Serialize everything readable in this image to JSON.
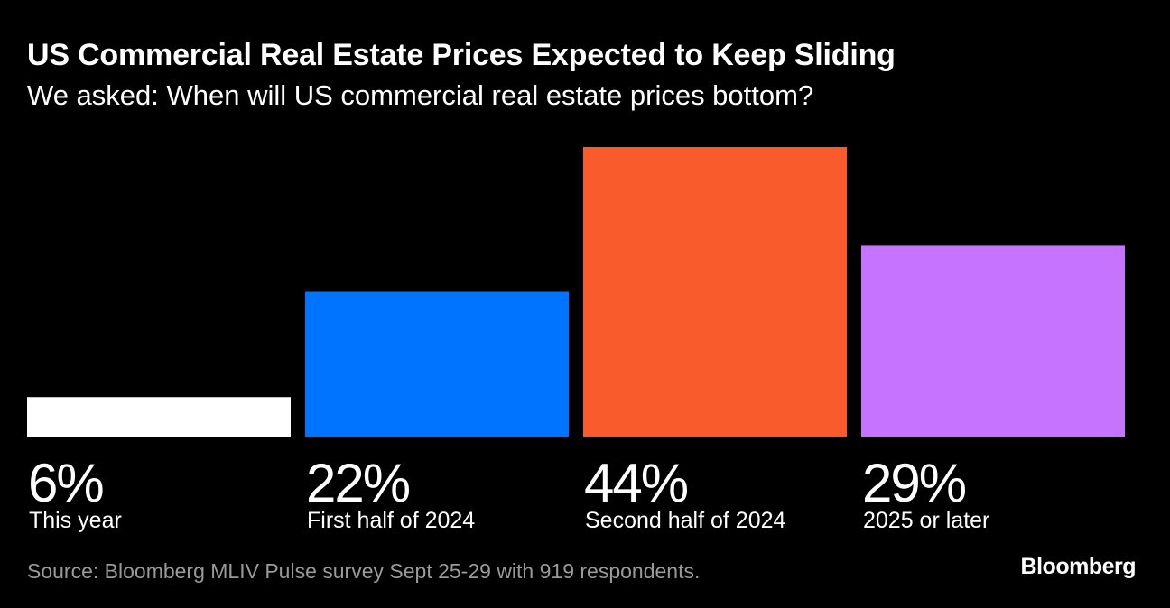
{
  "header": {
    "title": "US Commercial Real Estate Prices Expected to Keep Sliding",
    "subtitle": "We asked: When will US commercial real estate prices bottom?"
  },
  "footer": {
    "source": "Source: Bloomberg MLIV Pulse survey Sept 25-29 with 919 respondents.",
    "brand": "Bloomberg"
  },
  "chart_data": {
    "type": "bar",
    "title": "US Commercial Real Estate Prices Expected to Keep Sliding",
    "subtitle": "We asked: When will US commercial real estate prices bottom?",
    "categories": [
      "This year",
      "First half of 2024",
      "Second half of 2024",
      "2025 or later"
    ],
    "values": [
      6,
      22,
      44,
      29
    ],
    "value_labels": [
      "6%",
      "22%",
      "44%",
      "29%"
    ],
    "unit": "%",
    "colors": [
      "#ffffff",
      "#0073ff",
      "#fa5b2d",
      "#c674ff"
    ],
    "ylim": [
      0,
      44
    ],
    "grid": false,
    "legend": "none"
  }
}
